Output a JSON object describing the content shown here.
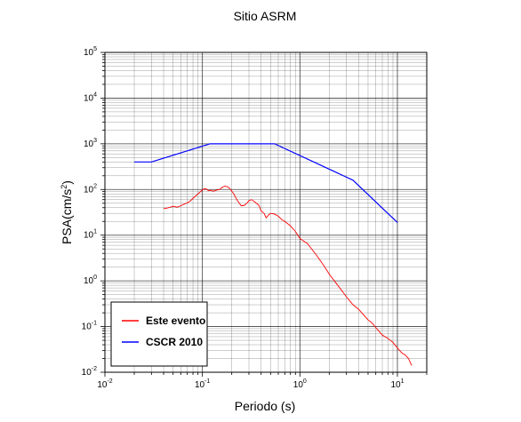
{
  "chart_data": {
    "type": "line",
    "title": "Sitio ASRM",
    "xlabel": "Periodo (s)",
    "ylabel_base": "PSA(cm/s",
    "ylabel_exp": "2",
    "ylabel_close": ")",
    "x_scale": "log",
    "y_scale": "log",
    "xlim": [
      0.01,
      20
    ],
    "ylim": [
      0.01,
      100000
    ],
    "grid": true,
    "legend_position": "bottom-left",
    "x_ticks": [
      {
        "base": "10",
        "exp": "-2",
        "value": 0.01
      },
      {
        "base": "10",
        "exp": "-1",
        "value": 0.1
      },
      {
        "base": "10",
        "exp": "0",
        "value": 1
      },
      {
        "base": "10",
        "exp": "1",
        "value": 10
      }
    ],
    "y_ticks": [
      {
        "base": "10",
        "exp": "-2",
        "value": 0.01
      },
      {
        "base": "10",
        "exp": "-1",
        "value": 0.1
      },
      {
        "base": "10",
        "exp": "0",
        "value": 1
      },
      {
        "base": "10",
        "exp": "1",
        "value": 10
      },
      {
        "base": "10",
        "exp": "2",
        "value": 100
      },
      {
        "base": "10",
        "exp": "3",
        "value": 1000
      },
      {
        "base": "10",
        "exp": "4",
        "value": 10000
      },
      {
        "base": "10",
        "exp": "5",
        "value": 100000
      }
    ],
    "series": [
      {
        "name": "Este evento",
        "color": "#ff0000",
        "x": [
          0.04,
          0.045,
          0.05,
          0.055,
          0.06,
          0.065,
          0.07,
          0.075,
          0.08,
          0.09,
          0.1,
          0.105,
          0.11,
          0.115,
          0.12,
          0.13,
          0.14,
          0.15,
          0.16,
          0.17,
          0.18,
          0.19,
          0.2,
          0.21,
          0.22,
          0.23,
          0.25,
          0.27,
          0.29,
          0.3,
          0.32,
          0.35,
          0.38,
          0.4,
          0.43,
          0.45,
          0.48,
          0.5,
          0.55,
          0.6,
          0.65,
          0.7,
          0.8,
          0.9,
          1.0,
          1.2,
          1.5,
          1.8,
          2.0,
          2.5,
          3.0,
          3.5,
          4.0,
          4.5,
          5.0,
          5.5,
          6.0,
          7.0,
          8.0,
          9.0,
          10.0,
          11.0,
          12.0,
          13.0,
          14.0
        ],
        "y": [
          38,
          40,
          43,
          41,
          44,
          48,
          51,
          56,
          64,
          80,
          98,
          105,
          102,
          94,
          96,
          92,
          97,
          100,
          112,
          118,
          115,
          106,
          92,
          80,
          66,
          56,
          44,
          45,
          52,
          57,
          60,
          52,
          45,
          34,
          30,
          24,
          28,
          30,
          29,
          26,
          22,
          20,
          16,
          12,
          8.5,
          6.5,
          3.5,
          2.0,
          1.4,
          0.75,
          0.45,
          0.3,
          0.24,
          0.18,
          0.14,
          0.12,
          0.095,
          0.065,
          0.055,
          0.045,
          0.034,
          0.027,
          0.024,
          0.02,
          0.014
        ]
      },
      {
        "name": "CSCR 2010",
        "color": "#0000ff",
        "x": [
          0.02,
          0.03,
          0.12,
          0.55,
          3.5,
          10.0
        ],
        "y": [
          400,
          400,
          1000,
          1000,
          160,
          19
        ]
      }
    ]
  }
}
